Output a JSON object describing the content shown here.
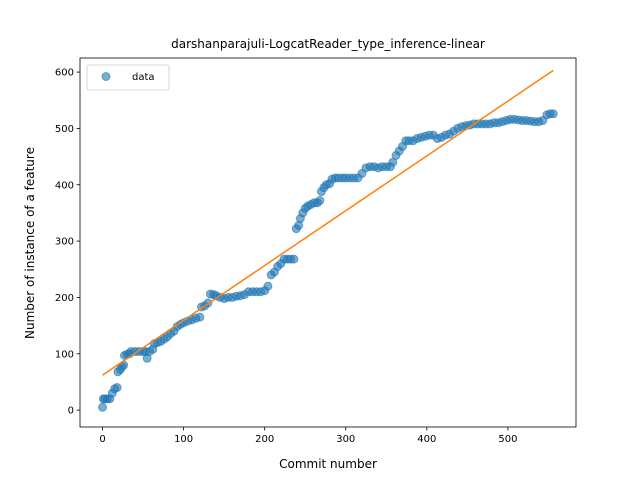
{
  "chart_data": {
    "type": "scatter",
    "title": "darshanparajuli-LogcatReader_type_inference-linear",
    "xlabel": "Commit number",
    "ylabel": "Number of instance of a feature",
    "xlim": [
      -27.8,
      584
    ],
    "ylim": [
      -30,
      625
    ],
    "xticks": [
      0,
      100,
      200,
      300,
      400,
      500
    ],
    "yticks": [
      0,
      100,
      200,
      300,
      400,
      500,
      600
    ],
    "legend": {
      "position": "top-left",
      "entries": [
        "data"
      ]
    },
    "colors": {
      "data": "#1f77b4",
      "fit": "#ff7f0e"
    },
    "series": [
      {
        "name": "data",
        "kind": "points",
        "points": [
          [
            0,
            5
          ],
          [
            1,
            20
          ],
          [
            3,
            20
          ],
          [
            6,
            20
          ],
          [
            9,
            20
          ],
          [
            12,
            30
          ],
          [
            15,
            38
          ],
          [
            18,
            40
          ],
          [
            19,
            68
          ],
          [
            22,
            72
          ],
          [
            24,
            77
          ],
          [
            26,
            80
          ],
          [
            27,
            97
          ],
          [
            30,
            99
          ],
          [
            33,
            100
          ],
          [
            35,
            104
          ],
          [
            40,
            104
          ],
          [
            45,
            104
          ],
          [
            50,
            104
          ],
          [
            53,
            104
          ],
          [
            55,
            92
          ],
          [
            58,
            104
          ],
          [
            62,
            108
          ],
          [
            64,
            118
          ],
          [
            68,
            120
          ],
          [
            72,
            122
          ],
          [
            76,
            126
          ],
          [
            80,
            130
          ],
          [
            84,
            136
          ],
          [
            88,
            140
          ],
          [
            92,
            148
          ],
          [
            96,
            152
          ],
          [
            100,
            155
          ],
          [
            105,
            158
          ],
          [
            110,
            160
          ],
          [
            115,
            163
          ],
          [
            120,
            165
          ],
          [
            122,
            183
          ],
          [
            126,
            185
          ],
          [
            130,
            190
          ],
          [
            133,
            206
          ],
          [
            137,
            205
          ],
          [
            140,
            203
          ],
          [
            145,
            200
          ],
          [
            150,
            198
          ],
          [
            155,
            200
          ],
          [
            160,
            200
          ],
          [
            165,
            202
          ],
          [
            170,
            203
          ],
          [
            175,
            205
          ],
          [
            180,
            210
          ],
          [
            185,
            210
          ],
          [
            190,
            210
          ],
          [
            195,
            210
          ],
          [
            200,
            212
          ],
          [
            204,
            220
          ],
          [
            208,
            240
          ],
          [
            212,
            245
          ],
          [
            216,
            255
          ],
          [
            220,
            260
          ],
          [
            224,
            268
          ],
          [
            228,
            268
          ],
          [
            232,
            268
          ],
          [
            236,
            268
          ],
          [
            239,
            322
          ],
          [
            242,
            328
          ],
          [
            244,
            340
          ],
          [
            247,
            350
          ],
          [
            250,
            358
          ],
          [
            253,
            362
          ],
          [
            257,
            365
          ],
          [
            261,
            368
          ],
          [
            265,
            368
          ],
          [
            268,
            372
          ],
          [
            270,
            388
          ],
          [
            273,
            395
          ],
          [
            276,
            400
          ],
          [
            280,
            402
          ],
          [
            283,
            410
          ],
          [
            287,
            412
          ],
          [
            291,
            412
          ],
          [
            296,
            412
          ],
          [
            300,
            412
          ],
          [
            305,
            412
          ],
          [
            310,
            412
          ],
          [
            315,
            412
          ],
          [
            320,
            420
          ],
          [
            325,
            430
          ],
          [
            330,
            432
          ],
          [
            335,
            432
          ],
          [
            340,
            430
          ],
          [
            345,
            432
          ],
          [
            350,
            432
          ],
          [
            355,
            432
          ],
          [
            358,
            440
          ],
          [
            362,
            452
          ],
          [
            366,
            460
          ],
          [
            370,
            468
          ],
          [
            374,
            478
          ],
          [
            378,
            478
          ],
          [
            383,
            478
          ],
          [
            388,
            482
          ],
          [
            393,
            484
          ],
          [
            398,
            486
          ],
          [
            403,
            488
          ],
          [
            408,
            488
          ],
          [
            413,
            482
          ],
          [
            418,
            484
          ],
          [
            423,
            488
          ],
          [
            428,
            490
          ],
          [
            433,
            495
          ],
          [
            438,
            500
          ],
          [
            443,
            503
          ],
          [
            448,
            505
          ],
          [
            453,
            506
          ],
          [
            458,
            508
          ],
          [
            463,
            508
          ],
          [
            468,
            508
          ],
          [
            473,
            508
          ],
          [
            478,
            508
          ],
          [
            483,
            510
          ],
          [
            488,
            510
          ],
          [
            493,
            512
          ],
          [
            498,
            514
          ],
          [
            503,
            516
          ],
          [
            508,
            516
          ],
          [
            513,
            515
          ],
          [
            518,
            514
          ],
          [
            523,
            514
          ],
          [
            528,
            513
          ],
          [
            533,
            512
          ],
          [
            538,
            512
          ],
          [
            543,
            514
          ],
          [
            548,
            524
          ],
          [
            552,
            526
          ],
          [
            556,
            526
          ]
        ]
      },
      {
        "name": "fit",
        "kind": "line",
        "points": [
          [
            0,
            62
          ],
          [
            556,
            603
          ]
        ]
      }
    ]
  }
}
